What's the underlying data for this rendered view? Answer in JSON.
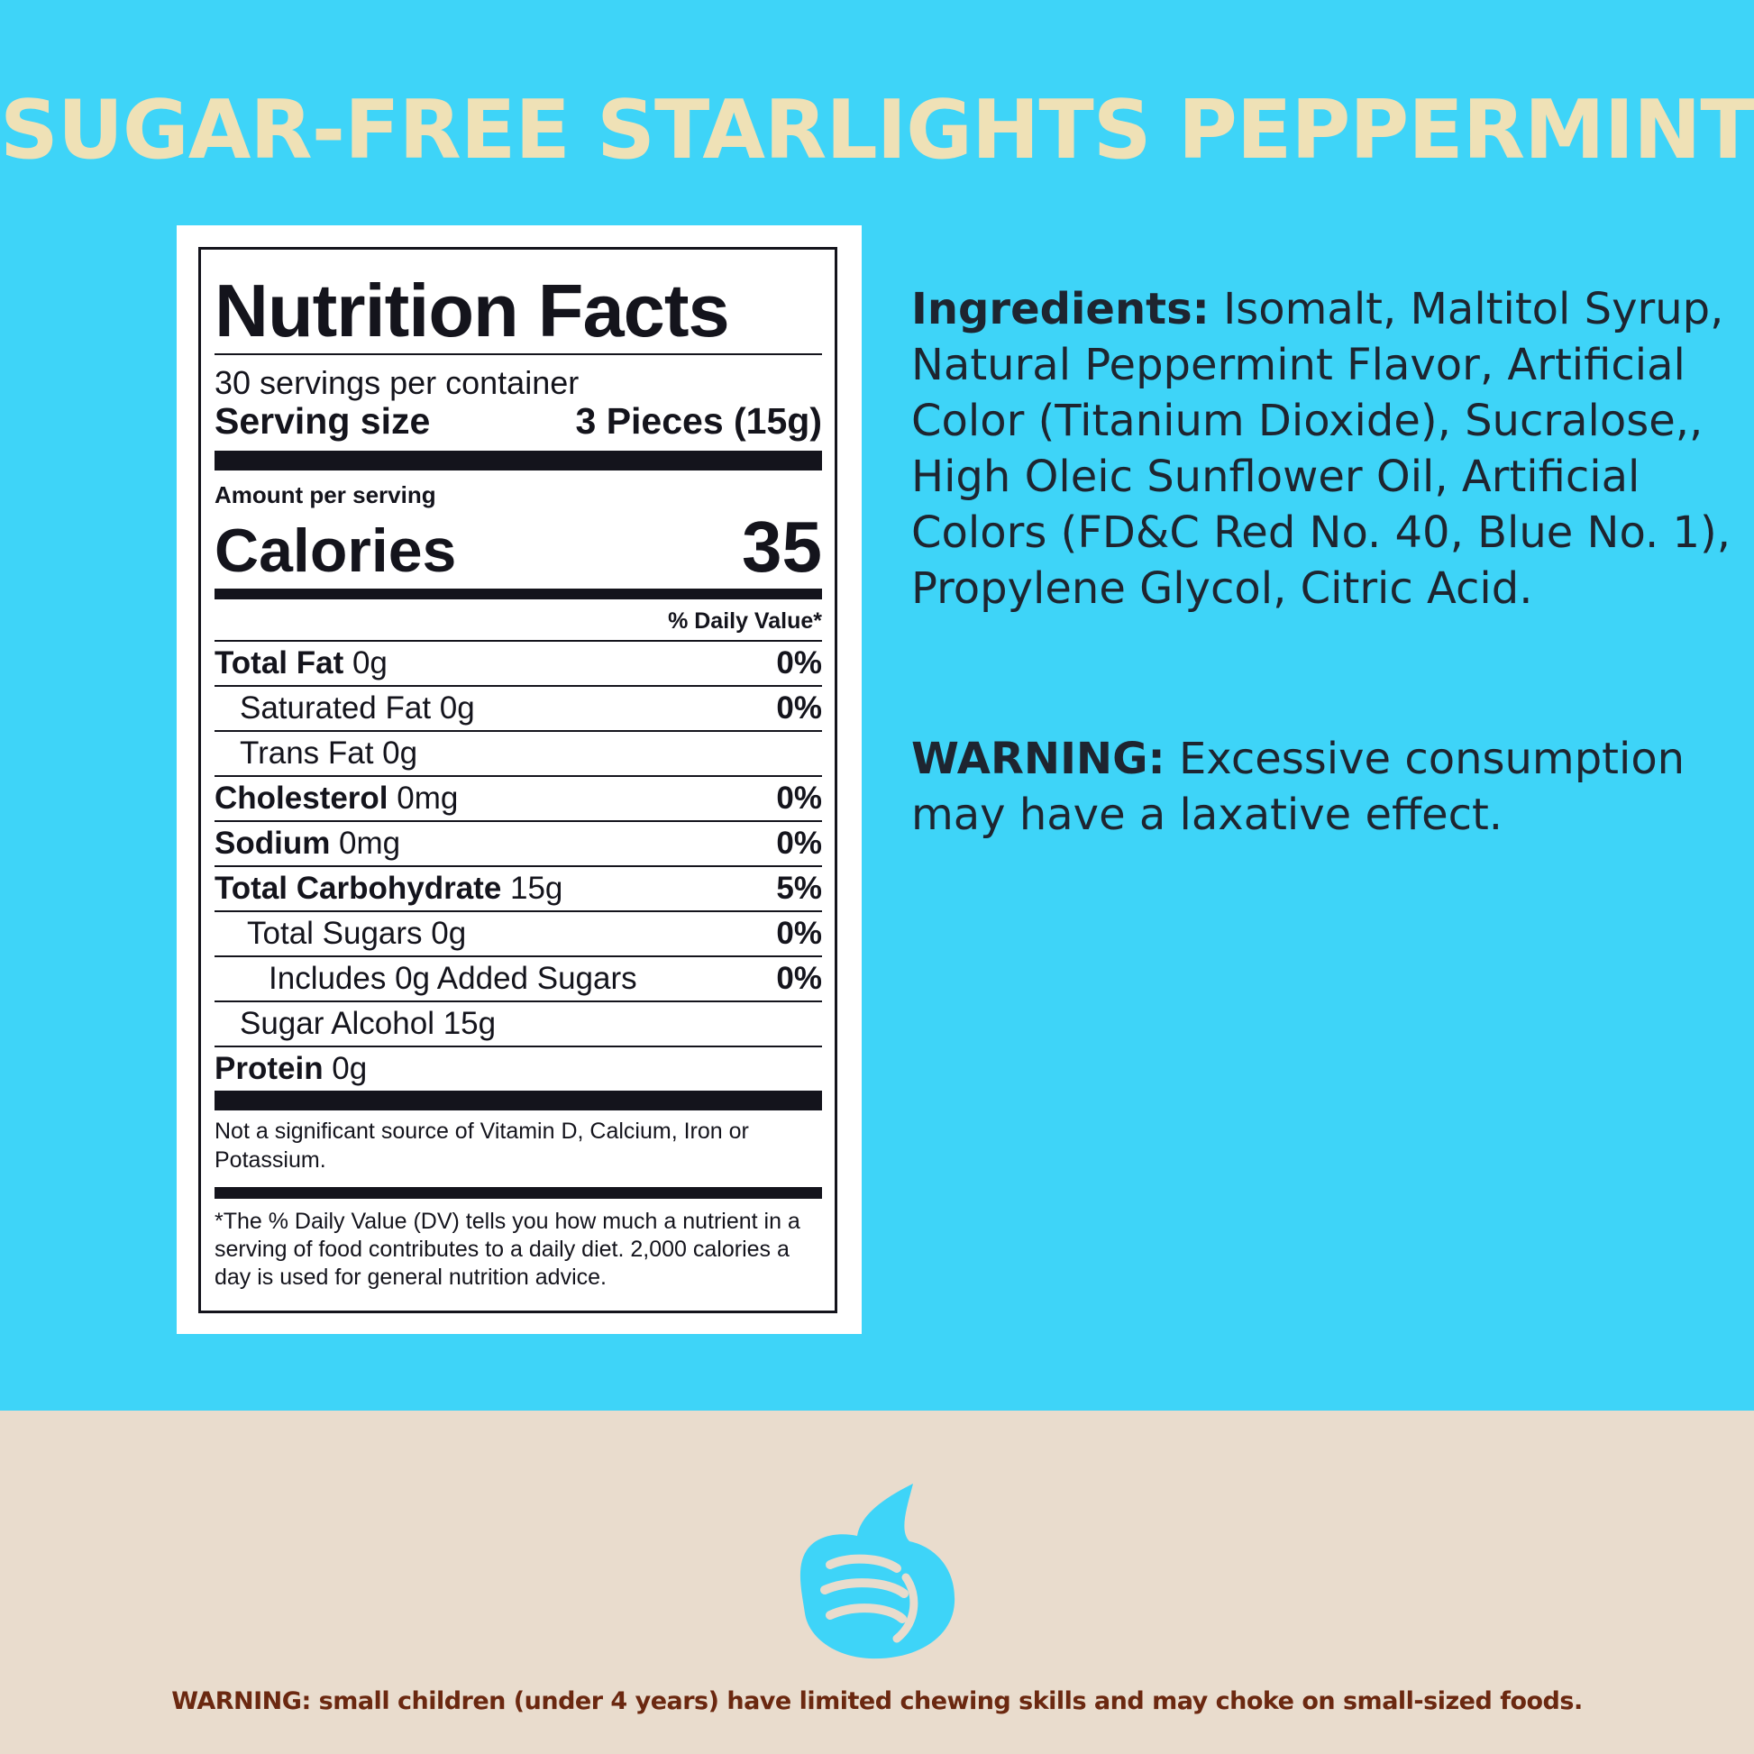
{
  "title": "SUGAR-FREE STARLIGHTS PEPPERMINT",
  "nutrition": {
    "heading": "Nutrition Facts",
    "servings_per_container": "30 servings per container",
    "serving_size_label": "Serving size",
    "serving_size_value": "3 Pieces (15g)",
    "amount_per_serving": "Amount per serving",
    "calories_label": "Calories",
    "calories_value": "35",
    "dv_header": "% Daily Value*",
    "rows": [
      {
        "label": "Total Fat",
        "amount": " 0g",
        "dv": "0%"
      },
      {
        "label": "Saturated Fat 0g",
        "amount": "",
        "dv": "0%"
      },
      {
        "label": "Trans Fat 0g",
        "amount": "",
        "dv": ""
      },
      {
        "label": "Cholesterol",
        "amount": " 0mg",
        "dv": "0%"
      },
      {
        "label": "Sodium",
        "amount": " 0mg",
        "dv": "0%"
      },
      {
        "label": "Total Carbohydrate",
        "amount": " 15g",
        "dv": "5%"
      },
      {
        "label": "Total Sugars 0g",
        "amount": "",
        "dv": "0%"
      },
      {
        "label": "Includes 0g Added Sugars",
        "amount": "",
        "dv": "0%"
      },
      {
        "label": "Sugar Alcohol 15g",
        "amount": "",
        "dv": ""
      },
      {
        "label": "Protein",
        "amount": " 0g",
        "dv": ""
      }
    ],
    "vitamins_note": "Not a significant source of Vitamin D, Calcium, Iron or Potassium.",
    "footnote": "*The % Daily Value (DV) tells you how much a nutrient in a serving of food contributes to a daily diet. 2,000 calories a day is used for general nutrition advice."
  },
  "ingredients": {
    "label": "Ingredients:",
    "text": " Isomalt, Maltitol Syrup, Natural Peppermint Flavor, Artificial Color (Titanium Dioxide), Sucralose,, High Oleic Sunflower Oil, Artificial Colors (FD&C Red No. 40, Blue No. 1), Propylene Glycol, Citric Acid."
  },
  "warning": {
    "label": "WARNING:",
    "text": " Excessive consumption may have a laxative effect."
  },
  "logo_icon": "thumbs-up-swirl-icon",
  "choking_warning": "WARNING: small children (under 4 years) have limited chewing skills and may choke on small-sized foods.",
  "colors": {
    "top_bg": "#3ed4f8",
    "bottom_bg": "#e9dccd",
    "title": "#efe1b6",
    "logo": "#3ed4f8",
    "bottom_warning": "#6b2810"
  }
}
